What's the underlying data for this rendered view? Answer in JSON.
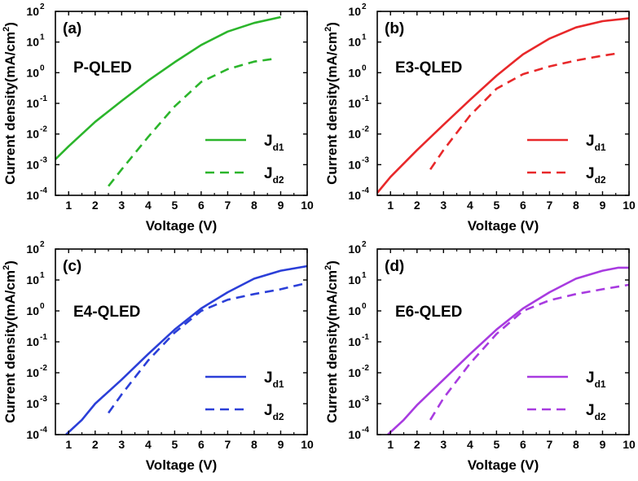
{
  "chart_data": [
    {
      "type": "line",
      "panel": "(a)",
      "device": "P-QLED",
      "xlabel": "Voltage (V)",
      "ylabel": "Current density(mA/cm",
      "ylabel_sup": "2",
      "ylabel_end": ")",
      "xlim": [
        0.5,
        10
      ],
      "ylim": [
        0.0001,
        100
      ],
      "yscale": "log",
      "x_ticks": [
        1,
        2,
        3,
        4,
        5,
        6,
        7,
        8,
        9,
        10
      ],
      "y_ticks": [
        "10",
        "10",
        "10",
        "10",
        "10",
        "10",
        "10"
      ],
      "y_tick_exps": [
        "-4",
        "-3",
        "-2",
        "-1",
        "0",
        "1",
        "2"
      ],
      "legend_placement": "bottom-right",
      "series": [
        {
          "name": "J",
          "sub": "d1",
          "color": "#2bb52b",
          "dash": "solid",
          "x": [
            0.5,
            1,
            2,
            3,
            4,
            5,
            6,
            7,
            8,
            9
          ],
          "y": [
            0.0015,
            0.004,
            0.025,
            0.12,
            0.55,
            2.2,
            8,
            22,
            42,
            65
          ]
        },
        {
          "name": "J",
          "sub": "d2",
          "color": "#2bb52b",
          "dash": "dashed",
          "x": [
            2.5,
            3,
            4,
            5,
            6,
            7,
            8,
            8.7
          ],
          "y": [
            0.0002,
            0.0007,
            0.008,
            0.08,
            0.5,
            1.3,
            2.3,
            2.8
          ]
        }
      ]
    },
    {
      "type": "line",
      "panel": "(b)",
      "device": "E3-QLED",
      "xlabel": "Voltage (V)",
      "ylabel": "Current density(mA/cm",
      "ylabel_sup": "2",
      "ylabel_end": ")",
      "xlim": [
        0.5,
        10
      ],
      "ylim": [
        0.0001,
        100
      ],
      "yscale": "log",
      "x_ticks": [
        1,
        2,
        3,
        4,
        5,
        6,
        7,
        8,
        9,
        10
      ],
      "y_ticks": [
        "10",
        "10",
        "10",
        "10",
        "10",
        "10",
        "10"
      ],
      "y_tick_exps": [
        "-4",
        "-3",
        "-2",
        "-1",
        "0",
        "1",
        "2"
      ],
      "legend_placement": "bottom-right",
      "series": [
        {
          "name": "J",
          "sub": "d1",
          "color": "#e8282a",
          "dash": "solid",
          "x": [
            0.5,
            1,
            2,
            3,
            4,
            5,
            6,
            7,
            8,
            9,
            10
          ],
          "y": [
            0.00012,
            0.0004,
            0.003,
            0.02,
            0.13,
            0.8,
            4,
            13,
            30,
            48,
            60
          ]
        },
        {
          "name": "J",
          "sub": "d2",
          "color": "#e8282a",
          "dash": "dashed",
          "x": [
            2.5,
            3,
            4,
            5,
            6,
            7,
            8,
            9,
            9.5
          ],
          "y": [
            0.0007,
            0.003,
            0.04,
            0.3,
            0.9,
            1.6,
            2.5,
            3.6,
            4.2
          ]
        }
      ]
    },
    {
      "type": "line",
      "panel": "(c)",
      "device": "E4-QLED",
      "xlabel": "Voltage (V)",
      "ylabel": "Current density(mA/cm",
      "ylabel_sup": "2",
      "ylabel_end": ")",
      "xlim": [
        0.5,
        10
      ],
      "ylim": [
        0.0001,
        100
      ],
      "yscale": "log",
      "x_ticks": [
        1,
        2,
        3,
        4,
        5,
        6,
        7,
        8,
        9,
        10
      ],
      "y_ticks": [
        "10",
        "10",
        "10",
        "10",
        "10",
        "10",
        "10"
      ],
      "y_tick_exps": [
        "-4",
        "-3",
        "-2",
        "-1",
        "0",
        "1",
        "2"
      ],
      "legend_placement": "bottom-right",
      "series": [
        {
          "name": "J",
          "sub": "d1",
          "color": "#2b3fd8",
          "dash": "solid",
          "x": [
            0.9,
            1.5,
            2,
            3,
            4,
            5,
            6,
            7,
            8,
            9,
            10
          ],
          "y": [
            0.0001,
            0.0003,
            0.001,
            0.006,
            0.04,
            0.25,
            1.2,
            4,
            11,
            20,
            28
          ]
        },
        {
          "name": "J",
          "sub": "d2",
          "color": "#2b3fd8",
          "dash": "dashed",
          "x": [
            2.5,
            3,
            4,
            5,
            6,
            7,
            8,
            9,
            10
          ],
          "y": [
            0.0005,
            0.002,
            0.025,
            0.2,
            1,
            2.3,
            3.5,
            5,
            8
          ]
        }
      ]
    },
    {
      "type": "line",
      "panel": "(d)",
      "device": "E6-QLED",
      "xlabel": "Voltage (V)",
      "ylabel": "Current density(mA/cm",
      "ylabel_sup": "2",
      "ylabel_end": ")",
      "xlim": [
        0.5,
        10
      ],
      "ylim": [
        0.0001,
        100
      ],
      "yscale": "log",
      "x_ticks": [
        1,
        2,
        3,
        4,
        5,
        6,
        7,
        8,
        9,
        10
      ],
      "y_ticks": [
        "10",
        "10",
        "10",
        "10",
        "10",
        "10",
        "10"
      ],
      "y_tick_exps": [
        "-4",
        "-3",
        "-2",
        "-1",
        "0",
        "1",
        "2"
      ],
      "legend_placement": "bottom-right",
      "series": [
        {
          "name": "J",
          "sub": "d1",
          "color": "#a83be0",
          "dash": "solid",
          "x": [
            0.9,
            1.5,
            2,
            3,
            4,
            5,
            6,
            7,
            8,
            9,
            9.6,
            10
          ],
          "y": [
            0.0001,
            0.0003,
            0.0009,
            0.006,
            0.04,
            0.25,
            1.2,
            4,
            11,
            20,
            25,
            25
          ]
        },
        {
          "name": "J",
          "sub": "d2",
          "color": "#a83be0",
          "dash": "dashed",
          "x": [
            2.5,
            3,
            4,
            5,
            6,
            7,
            8,
            9,
            10
          ],
          "y": [
            0.0003,
            0.0015,
            0.02,
            0.18,
            1,
            2.2,
            3.5,
            5,
            7
          ]
        }
      ]
    }
  ]
}
